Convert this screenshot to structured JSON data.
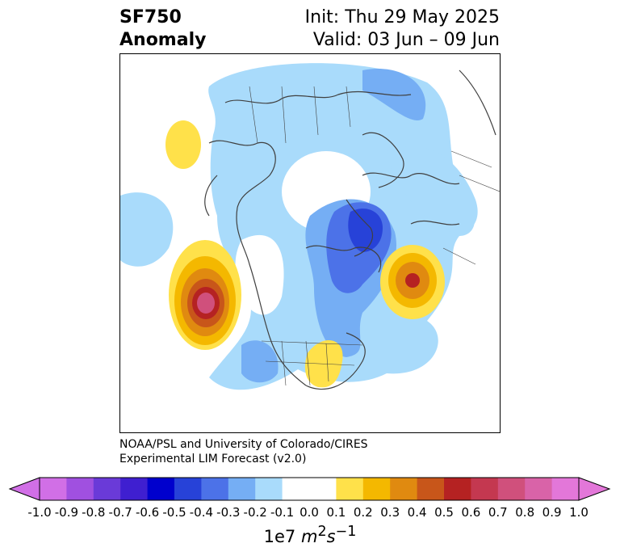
{
  "header": {
    "title_line1": "SF750",
    "title_line2": "Anomaly",
    "init_label": "Init: Thu 29 May 2025",
    "valid_label": "Valid: 03 Jun – 09 Jun"
  },
  "credit": {
    "line1": "NOAA/PSL and University of Colorado/CIRES",
    "line2": "Experimental LIM Forecast (v2.0)"
  },
  "colorbar": {
    "units_base": "1e7",
    "units_var": "m",
    "units_sup1": "2",
    "units_s": "s",
    "units_sup2": "−1",
    "ticks": [
      "-1.0",
      "-0.9",
      "-0.8",
      "-0.7",
      "-0.6",
      "-0.5",
      "-0.4",
      "-0.3",
      "-0.2",
      "-0.1",
      "0.0",
      "0.1",
      "0.2",
      "0.3",
      "0.4",
      "0.5",
      "0.6",
      "0.7",
      "0.8",
      "0.9",
      "1.0"
    ],
    "colors": [
      "#d16fe6",
      "#a050e0",
      "#6a3ad8",
      "#3f1fd0",
      "#0000cd",
      "#2742d8",
      "#4c72e8",
      "#75aef4",
      "#a9dbfb",
      "#ffffff",
      "#ffffff",
      "#ffe14a",
      "#f4b800",
      "#e08a10",
      "#c8561a",
      "#b52222",
      "#c43850",
      "#d0507c",
      "#d963a8",
      "#e377d9"
    ],
    "extend_low_color": "#d16fe6",
    "extend_high_color": "#e377d9"
  },
  "map": {
    "projection": "north-polar-stereographic",
    "region": "Northern Hemisphere (North America / Arctic / Europe)"
  }
}
